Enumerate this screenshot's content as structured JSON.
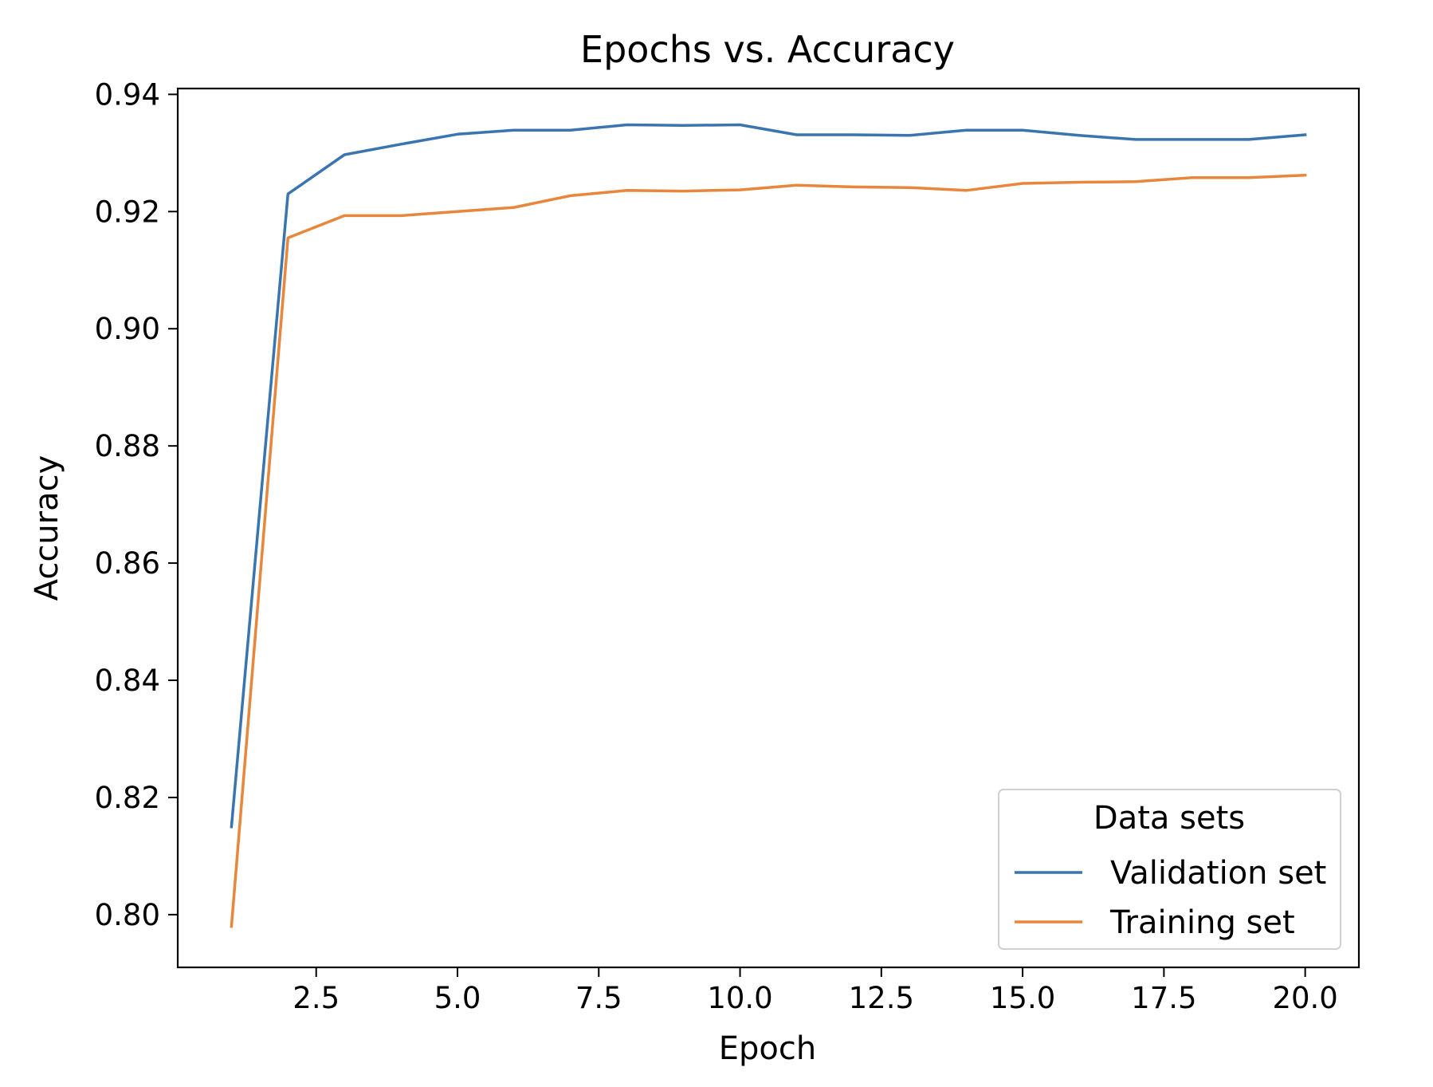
{
  "chart_data": {
    "type": "line",
    "title": "Epochs vs. Accuracy",
    "xlabel": "Epoch",
    "ylabel": "Accuracy",
    "xlim": [
      0.05,
      20.95
    ],
    "ylim": [
      0.791,
      0.941
    ],
    "xticks": [
      2.5,
      5.0,
      7.5,
      10.0,
      12.5,
      15.0,
      17.5,
      20.0
    ],
    "xtick_labels": [
      "2.5",
      "5.0",
      "7.5",
      "10.0",
      "12.5",
      "15.0",
      "17.5",
      "20.0"
    ],
    "yticks": [
      0.8,
      0.82,
      0.84,
      0.86,
      0.88,
      0.9,
      0.92,
      0.94
    ],
    "ytick_labels": [
      "0.80",
      "0.82",
      "0.84",
      "0.86",
      "0.88",
      "0.90",
      "0.92",
      "0.94"
    ],
    "grid": false,
    "legend": {
      "title": "Data sets",
      "placement": "lower-right"
    },
    "x": [
      1,
      2,
      3,
      4,
      5,
      6,
      7,
      8,
      9,
      10,
      11,
      12,
      13,
      14,
      15,
      16,
      17,
      18,
      19,
      20
    ],
    "series": [
      {
        "name": "Validation set",
        "color": "#3a75b0",
        "values": [
          0.815,
          0.923,
          0.9297,
          0.9315,
          0.9332,
          0.9339,
          0.9339,
          0.9348,
          0.9347,
          0.9348,
          0.9331,
          0.9331,
          0.933,
          0.9339,
          0.9339,
          0.933,
          0.9323,
          0.9323,
          0.9323,
          0.9331
        ]
      },
      {
        "name": "Training set",
        "color": "#e8863b",
        "values": [
          0.798,
          0.9155,
          0.9193,
          0.9193,
          0.92,
          0.9207,
          0.9227,
          0.9236,
          0.9235,
          0.9237,
          0.9245,
          0.9242,
          0.9241,
          0.9236,
          0.9248,
          0.925,
          0.9251,
          0.9258,
          0.9258,
          0.9262
        ]
      }
    ]
  }
}
